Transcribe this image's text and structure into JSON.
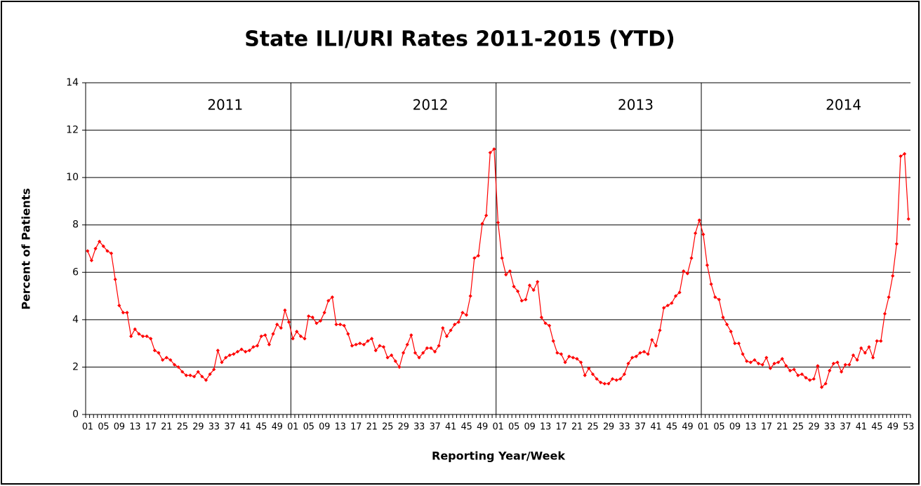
{
  "chart_data": {
    "type": "line",
    "title": "State ILI/URI Rates 2011-2015 (YTD)",
    "y_label": "Percent of Patients",
    "x_label": "Reporting Year/Week",
    "year_labels": [
      "2011",
      "2012",
      "2013",
      "2014"
    ],
    "year_lengths": [
      52,
      52,
      52,
      53
    ],
    "categories": [
      "01",
      null,
      null,
      null,
      "05",
      null,
      null,
      null,
      "09",
      null,
      null,
      null,
      "13",
      null,
      null,
      null,
      "17",
      null,
      null,
      null,
      "21",
      null,
      null,
      null,
      "25",
      null,
      null,
      null,
      "29",
      null,
      null,
      null,
      "33",
      null,
      null,
      null,
      "37",
      null,
      null,
      null,
      "41",
      null,
      null,
      null,
      "45",
      null,
      null,
      null,
      "49",
      null,
      null,
      null,
      "01",
      null,
      null,
      null,
      "05",
      null,
      null,
      null,
      "09",
      null,
      null,
      null,
      "13",
      null,
      null,
      null,
      "17",
      null,
      null,
      null,
      "21",
      null,
      null,
      null,
      "25",
      null,
      null,
      null,
      "29",
      null,
      null,
      null,
      "33",
      null,
      null,
      null,
      "37",
      null,
      null,
      null,
      "41",
      null,
      null,
      null,
      "45",
      null,
      null,
      null,
      "49",
      null,
      null,
      null,
      "01",
      null,
      null,
      null,
      "05",
      null,
      null,
      null,
      "09",
      null,
      null,
      null,
      "13",
      null,
      null,
      null,
      "17",
      null,
      null,
      null,
      "21",
      null,
      null,
      null,
      "25",
      null,
      null,
      null,
      "29",
      null,
      null,
      null,
      "33",
      null,
      null,
      null,
      "37",
      null,
      null,
      null,
      "41",
      null,
      null,
      null,
      "45",
      null,
      null,
      null,
      "49",
      null,
      null,
      null,
      "01",
      null,
      null,
      null,
      "05",
      null,
      null,
      null,
      "09",
      null,
      null,
      null,
      "13",
      null,
      null,
      null,
      "17",
      null,
      null,
      null,
      "21",
      null,
      null,
      null,
      "25",
      null,
      null,
      null,
      "29",
      null,
      null,
      null,
      "33",
      null,
      null,
      null,
      "37",
      null,
      null,
      null,
      "41",
      null,
      null,
      null,
      "45",
      null,
      null,
      null,
      "49",
      null,
      null,
      null,
      "53"
    ],
    "series": [
      {
        "name": "ILI/URI",
        "color": "#ff0000",
        "values": [
          6.9,
          6.5,
          7.0,
          7.3,
          7.1,
          6.9,
          6.8,
          5.7,
          4.6,
          4.3,
          4.3,
          3.3,
          3.6,
          3.4,
          3.3,
          3.3,
          3.2,
          2.7,
          2.6,
          2.3,
          2.4,
          2.3,
          2.1,
          2.0,
          1.8,
          1.65,
          1.65,
          1.6,
          1.8,
          1.6,
          1.45,
          1.7,
          1.9,
          2.7,
          2.2,
          2.4,
          2.5,
          2.55,
          2.65,
          2.75,
          2.65,
          2.7,
          2.85,
          2.9,
          3.3,
          3.35,
          2.95,
          3.4,
          3.8,
          3.65,
          4.4,
          3.9,
          3.2,
          3.5,
          3.3,
          3.2,
          4.15,
          4.1,
          3.85,
          3.95,
          4.3,
          4.8,
          4.95,
          3.8,
          3.8,
          3.75,
          3.4,
          2.9,
          2.95,
          3.0,
          2.95,
          3.1,
          3.2,
          2.7,
          2.9,
          2.85,
          2.4,
          2.5,
          2.25,
          2.0,
          2.6,
          2.95,
          3.35,
          2.6,
          2.4,
          2.6,
          2.8,
          2.8,
          2.65,
          2.9,
          3.65,
          3.3,
          3.55,
          3.8,
          3.9,
          4.3,
          4.2,
          5.0,
          6.6,
          6.7,
          8.05,
          8.4,
          11.05,
          11.2,
          8.1,
          6.6,
          5.9,
          6.05,
          5.4,
          5.2,
          4.8,
          4.85,
          5.45,
          5.25,
          5.6,
          4.1,
          3.85,
          3.75,
          3.1,
          2.6,
          2.55,
          2.2,
          2.45,
          2.4,
          2.35,
          2.2,
          1.65,
          1.95,
          1.7,
          1.5,
          1.35,
          1.3,
          1.3,
          1.5,
          1.45,
          1.5,
          1.7,
          2.15,
          2.4,
          2.45,
          2.6,
          2.65,
          2.55,
          3.15,
          2.9,
          3.55,
          4.5,
          4.6,
          4.7,
          5.0,
          5.15,
          6.05,
          5.95,
          6.6,
          7.65,
          8.2,
          7.6,
          6.3,
          5.5,
          4.95,
          4.85,
          4.1,
          3.8,
          3.5,
          3.0,
          3.0,
          2.55,
          2.25,
          2.2,
          2.3,
          2.15,
          2.1,
          2.4,
          1.95,
          2.15,
          2.2,
          2.35,
          2.05,
          1.85,
          1.9,
          1.65,
          1.7,
          1.55,
          1.45,
          1.5,
          2.05,
          1.15,
          1.3,
          1.85,
          2.15,
          2.2,
          1.8,
          2.1,
          2.1,
          2.5,
          2.3,
          2.8,
          2.6,
          2.85,
          2.4,
          3.1,
          3.1,
          4.25,
          4.95,
          5.85,
          7.2,
          10.9,
          11.0,
          8.25
        ]
      }
    ],
    "ylim": [
      0,
      14
    ],
    "yticks": [
      0,
      2,
      4,
      6,
      8,
      10,
      12,
      14
    ],
    "grid": true
  }
}
